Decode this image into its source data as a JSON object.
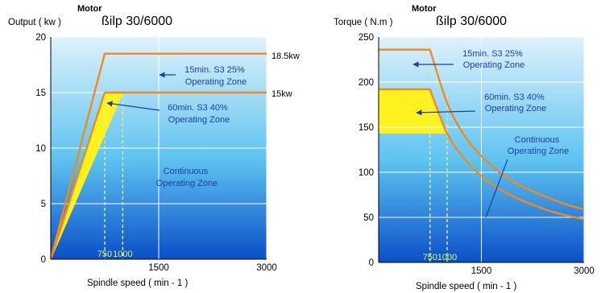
{
  "colors": {
    "sky_top": "#dff1fb",
    "sky_mid": "#5ec3f0",
    "sky_bottom": "#0a4fc8",
    "yellow_zone": "#fff21e",
    "orange_curve": "#f08a1c",
    "grid": "#ffffff",
    "zone_text": "#1b3fa4",
    "axis_text": "#000000",
    "marker": "#d8f27a"
  },
  "chart_data": [
    {
      "type": "area",
      "motor_label": "Motor",
      "motor_model": "ßilp 30/6000",
      "ylabel": "Output ( kw )",
      "xlabel": "Spindle speed ( min - 1 )",
      "xlim": [
        0,
        3000
      ],
      "ylim": [
        0,
        20
      ],
      "x_ticks": [
        0,
        1500,
        3000
      ],
      "x_tick_labels": [
        "1500",
        "3000"
      ],
      "y_ticks": [
        0,
        5,
        10,
        15,
        20
      ],
      "y_tick_labels": [
        "0",
        "5",
        "10",
        "15",
        "20"
      ],
      "grid": true,
      "speed_markers": [
        {
          "x": 750,
          "label": "750"
        },
        {
          "x": 1000,
          "label": "1000"
        }
      ],
      "series": [
        {
          "name": "15min. S3 25% Operating Zone",
          "end_label": "18.5kw",
          "x": [
            0,
            750,
            3000
          ],
          "y": [
            0,
            18.5,
            18.5
          ]
        },
        {
          "name": "60min. S3 40% Operating Zone",
          "end_label": "15kw",
          "x": [
            0,
            750,
            3000
          ],
          "y": [
            0,
            15,
            15
          ]
        }
      ],
      "continuous_boundary": {
        "x": [
          0,
          1000
        ],
        "y": [
          0,
          15
        ]
      },
      "annotations": [
        {
          "lines": [
            "15min. S3 25%",
            "Operating Zone"
          ]
        },
        {
          "lines": [
            "60min. S3 40%",
            "Operating Zone"
          ]
        },
        {
          "lines": [
            "Continuous",
            "Operating Zone"
          ]
        }
      ]
    },
    {
      "type": "area",
      "motor_label": "Motor",
      "motor_model": "ßilp 30/6000",
      "ylabel": "Torque ( N.m )",
      "xlabel": "Spindle speed ( min - 1 )",
      "xlim": [
        0,
        3000
      ],
      "ylim": [
        0,
        250
      ],
      "x_ticks": [
        0,
        1500,
        3000
      ],
      "x_tick_labels": [
        "1500",
        "3000"
      ],
      "y_ticks": [
        0,
        50,
        100,
        150,
        200,
        250
      ],
      "y_tick_labels": [
        "0",
        "50",
        "100",
        "150",
        "200",
        "250"
      ],
      "grid": true,
      "speed_markers": [
        {
          "x": 750,
          "label": "750"
        },
        {
          "x": 1000,
          "label": "1000"
        }
      ],
      "series": [
        {
          "name": "15min. S3 25% Operating Zone",
          "x": [
            0,
            750,
            1000,
            1250,
            1500,
            1750,
            2000,
            2250,
            2500,
            2750,
            3000
          ],
          "y": [
            236,
            236,
            177,
            141,
            118,
            101,
            88,
            79,
            71,
            64,
            59
          ]
        },
        {
          "name": "60min. S3 40% Operating Zone",
          "x": [
            0,
            750,
            1000,
            1250,
            1500,
            1750,
            2000,
            2250,
            2500,
            2750,
            3000
          ],
          "y": [
            192,
            192,
            143,
            115,
            96,
            82,
            72,
            64,
            57,
            52,
            48
          ]
        }
      ],
      "continuous_level": 143,
      "annotations": [
        {
          "lines": [
            "15min. S3 25%",
            "Operating Zone"
          ]
        },
        {
          "lines": [
            "60min. S3 40%",
            "Operating Zone"
          ]
        },
        {
          "lines": [
            "Continuous",
            "Operating Zone"
          ]
        }
      ]
    }
  ]
}
